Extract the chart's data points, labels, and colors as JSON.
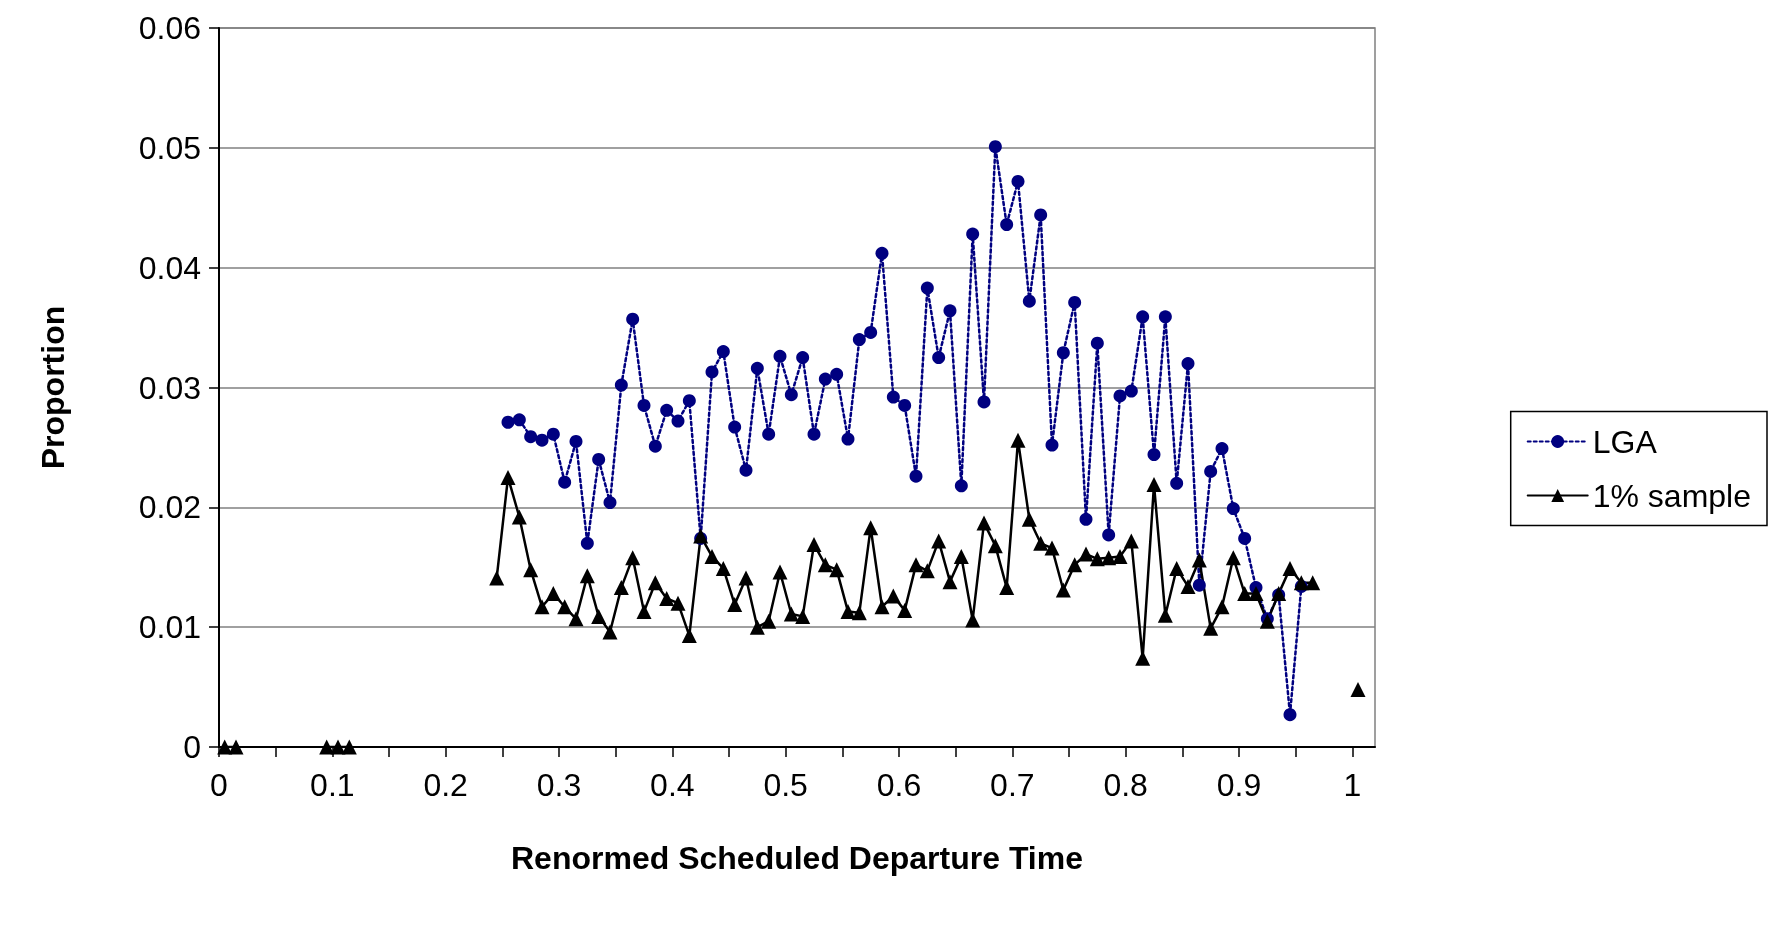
{
  "chart_data": {
    "type": "line",
    "xlabel": "Renormed Scheduled Departure Time",
    "ylabel": "Proportion",
    "xlim": [
      0,
      1.02
    ],
    "ylim": [
      0,
      0.06
    ],
    "xticks": [
      0,
      {
        "value": 0.05,
        "label": null
      },
      0.1,
      {
        "value": 0.15,
        "label": null
      },
      0.2,
      {
        "value": 0.25,
        "label": null
      },
      0.3,
      {
        "value": 0.35,
        "label": null
      },
      0.4,
      {
        "value": 0.45,
        "label": null
      },
      0.5,
      {
        "value": 0.55,
        "label": null
      },
      0.6,
      {
        "value": 0.65,
        "label": null
      },
      0.7,
      {
        "value": 0.75,
        "label": null
      },
      0.8,
      {
        "value": 0.85,
        "label": null
      },
      0.9,
      {
        "value": 0.95,
        "label": null
      },
      1
    ],
    "yticks": [
      0,
      0.01,
      0.02,
      0.03,
      0.04,
      0.05,
      0.06
    ],
    "grid": "y",
    "legend": "right",
    "series": [
      {
        "name": "LGA",
        "color": "#000080",
        "marker": "circle",
        "line_style": "dotted",
        "x": [
          0.255,
          0.265,
          0.275,
          0.285,
          0.295,
          0.305,
          0.315,
          0.325,
          0.335,
          0.345,
          0.355,
          0.365,
          0.375,
          0.385,
          0.395,
          0.405,
          0.415,
          0.425,
          0.435,
          0.445,
          0.455,
          0.465,
          0.475,
          0.485,
          0.495,
          0.505,
          0.515,
          0.525,
          0.535,
          0.545,
          0.555,
          0.565,
          0.575,
          0.585,
          0.595,
          0.605,
          0.615,
          0.625,
          0.635,
          0.645,
          0.655,
          0.665,
          0.675,
          0.685,
          0.695,
          0.705,
          0.715,
          0.725,
          0.735,
          0.745,
          0.755,
          0.765,
          0.775,
          0.785,
          0.795,
          0.805,
          0.815,
          0.825,
          0.835,
          0.845,
          0.855,
          0.865,
          0.875,
          0.885,
          0.895,
          0.905,
          0.915,
          0.925,
          0.935,
          0.945,
          0.955
        ],
        "values": [
          0.0271,
          0.0273,
          0.0259,
          0.0256,
          0.0261,
          0.0221,
          0.0255,
          0.017,
          0.024,
          0.0204,
          0.0302,
          0.0357,
          0.0285,
          0.0251,
          0.0281,
          0.0272,
          0.0289,
          0.0174,
          0.0313,
          0.033,
          0.0267,
          0.0231,
          0.0316,
          0.0261,
          0.0326,
          0.0294,
          0.0325,
          0.0261,
          0.0307,
          0.0311,
          0.0257,
          0.034,
          0.0346,
          0.0412,
          0.0292,
          0.0285,
          0.0226,
          0.0383,
          0.0325,
          0.0364,
          0.0218,
          0.0428,
          0.0288,
          0.0501,
          0.0436,
          0.0472,
          0.0372,
          0.0444,
          0.0252,
          0.0329,
          0.0371,
          0.019,
          0.0337,
          0.0177,
          0.0293,
          0.0297,
          0.0359,
          0.0244,
          0.0359,
          0.022,
          0.032,
          0.0135,
          0.023,
          0.0249,
          0.0199,
          0.0174,
          0.0133,
          0.0107,
          0.0127,
          0.0027,
          0.0134
        ]
      },
      {
        "name": "1% sample",
        "color": "#000000",
        "marker": "triangle",
        "line_style": "solid",
        "x": [
          0.005,
          0.015,
          0.025,
          0.035,
          0.045,
          0.055,
          0.065,
          0.075,
          0.085,
          0.095,
          0.105,
          0.115,
          0.125,
          0.135,
          0.145,
          0.155,
          0.165,
          0.175,
          0.185,
          0.195,
          0.205,
          0.215,
          0.225,
          0.235,
          0.245,
          0.255,
          0.265,
          0.275,
          0.285,
          0.295,
          0.305,
          0.315,
          0.325,
          0.335,
          0.345,
          0.355,
          0.365,
          0.375,
          0.385,
          0.395,
          0.405,
          0.415,
          0.425,
          0.435,
          0.445,
          0.455,
          0.465,
          0.475,
          0.485,
          0.495,
          0.505,
          0.515,
          0.525,
          0.535,
          0.545,
          0.555,
          0.565,
          0.575,
          0.585,
          0.595,
          0.605,
          0.615,
          0.625,
          0.635,
          0.645,
          0.655,
          0.665,
          0.675,
          0.685,
          0.695,
          0.705,
          0.715,
          0.725,
          0.735,
          0.745,
          0.755,
          0.765,
          0.775,
          0.785,
          0.795,
          0.805,
          0.815,
          0.825,
          0.835,
          0.845,
          0.855,
          0.865,
          0.875,
          0.885,
          0.895,
          0.905,
          0.915,
          0.925,
          0.935,
          0.945,
          0.955,
          0.965,
          0.975,
          0.985,
          0.995,
          1.005
        ],
        "values": [
          0,
          0,
          null,
          null,
          null,
          null,
          null,
          null,
          null,
          0,
          0,
          0,
          null,
          null,
          null,
          null,
          null,
          null,
          null,
          null,
          null,
          null,
          null,
          null,
          0.0141,
          0.0225,
          0.0192,
          0.0148,
          0.0117,
          0.0128,
          0.0117,
          0.0107,
          0.0143,
          0.0109,
          0.0096,
          0.0133,
          0.0158,
          0.0113,
          0.0137,
          0.0124,
          0.012,
          0.0093,
          0.0176,
          0.0159,
          0.0149,
          0.0119,
          0.0141,
          0.01,
          0.0105,
          0.0146,
          0.0111,
          0.0109,
          0.0169,
          0.0152,
          0.0148,
          0.0113,
          0.0112,
          0.0183,
          0.0117,
          0.0126,
          0.0114,
          0.0152,
          0.0147,
          0.0172,
          0.0138,
          0.0159,
          0.0106,
          0.0187,
          0.0168,
          0.0133,
          0.0256,
          0.019,
          0.017,
          0.0166,
          0.0131,
          0.0152,
          0.0161,
          0.0157,
          0.0158,
          0.0159,
          0.0172,
          0.0074,
          0.0219,
          0.011,
          0.0149,
          0.0134,
          0.0156,
          0.0099,
          0.0117,
          0.0158,
          0.0128,
          0.0128,
          0.0105,
          0.0128,
          0.0149,
          0.0137,
          0.0137,
          null,
          null,
          null,
          0.0048
        ]
      }
    ]
  }
}
